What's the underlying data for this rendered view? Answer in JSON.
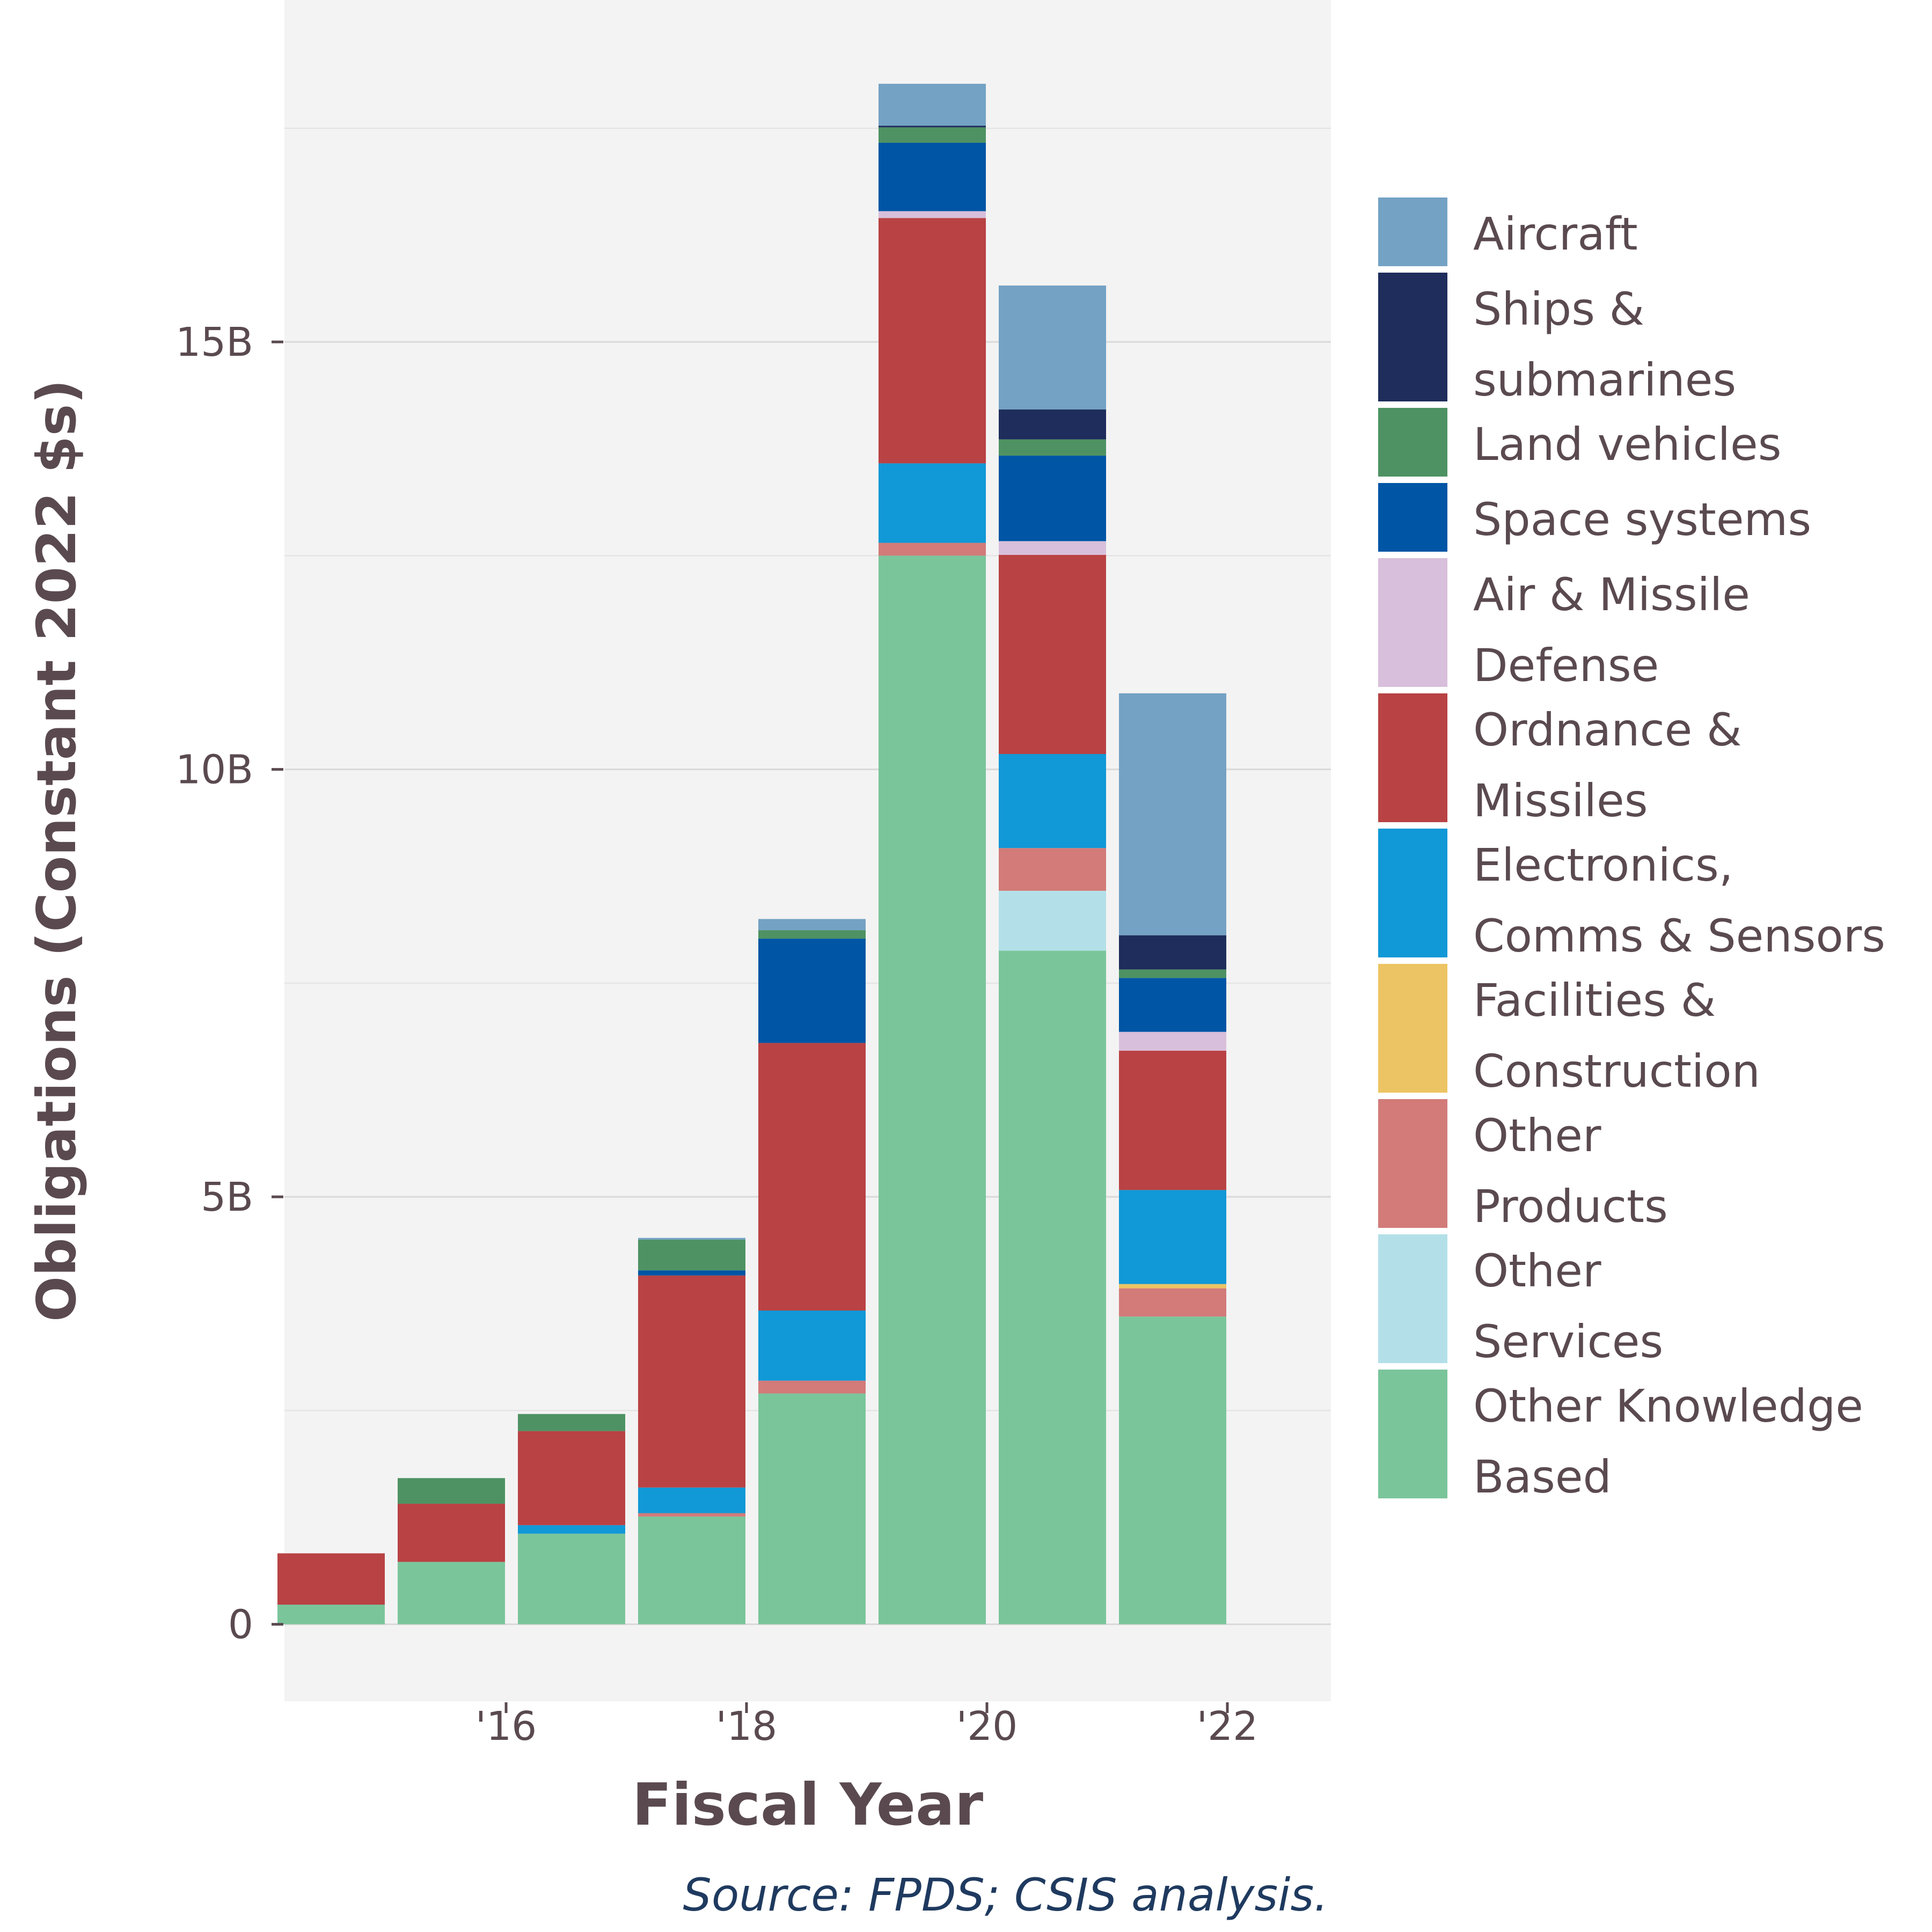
{
  "chart_data": {
    "type": "bar",
    "stacked": true,
    "xlabel": "Fiscal Year",
    "ylabel": "Obligations (Constant 2022 $s)",
    "caption": "Source: FPDS; CSIS analysis.",
    "categories": [
      "2015",
      "2016",
      "2017",
      "2018",
      "2019",
      "2020",
      "2021",
      "2022"
    ],
    "x_tick_labels": [
      {
        "at": "2016",
        "label": "'16"
      },
      {
        "at": "2018",
        "label": "'18"
      },
      {
        "at": "2020",
        "label": "'20"
      },
      {
        "at": "2022",
        "label": "'22"
      }
    ],
    "y_ticks": [
      {
        "value": 0,
        "label": "0"
      },
      {
        "value": 5,
        "label": "5B"
      },
      {
        "value": 10,
        "label": "10B"
      },
      {
        "value": 15,
        "label": "15B"
      }
    ],
    "ylim": [
      -0.9,
      19.0
    ],
    "y_units": "billions",
    "grid": true,
    "legend_position": "right",
    "series": [
      {
        "name": "Other Knowledge Based",
        "color": "#7bc59b",
        "values": [
          0.23,
          0.73,
          1.06,
          1.26,
          2.7,
          12.5,
          7.88,
          3.6
        ]
      },
      {
        "name": "Other Services",
        "color": "#b3e0e8",
        "values": [
          0,
          0,
          0,
          0,
          0,
          0,
          0.7,
          0
        ]
      },
      {
        "name": "Other Products",
        "color": "#d27b79",
        "values": [
          0,
          0,
          0,
          0.04,
          0.15,
          0.15,
          0.5,
          0.33
        ]
      },
      {
        "name": "Facilities & Construction",
        "color": "#edc463",
        "values": [
          0,
          0,
          0,
          0,
          0,
          0,
          0,
          0.05
        ]
      },
      {
        "name": "Electronics, Comms & Sensors",
        "color": "#1198d6",
        "values": [
          0,
          0,
          0.1,
          0.3,
          0.82,
          0.93,
          1.1,
          1.1
        ]
      },
      {
        "name": "Ordnance & Missiles",
        "color": "#b94244",
        "values": [
          0.6,
          0.68,
          1.1,
          2.48,
          3.13,
          2.87,
          2.33,
          1.63
        ]
      },
      {
        "name": "Air & Missile Defense",
        "color": "#d8bfdb",
        "values": [
          0,
          0,
          0,
          0,
          0,
          0.08,
          0.16,
          0.22
        ]
      },
      {
        "name": "Space systems",
        "color": "#0055a5",
        "values": [
          0,
          0,
          0,
          0.06,
          1.22,
          0.8,
          1.0,
          0.63
        ]
      },
      {
        "name": "Land vehicles",
        "color": "#4e9263",
        "values": [
          0,
          0.3,
          0.2,
          0.36,
          0.1,
          0.18,
          0.19,
          0.1
        ]
      },
      {
        "name": "Ships & submarines",
        "color": "#1e2d5b",
        "values": [
          0,
          0,
          0,
          0,
          0,
          0.02,
          0.35,
          0.4
        ]
      },
      {
        "name": "Aircraft",
        "color": "#74a2c4",
        "values": [
          0,
          0,
          0,
          0.02,
          0.13,
          0.49,
          1.45,
          2.83
        ]
      }
    ],
    "legend_entries": [
      {
        "series": "Aircraft",
        "lines": [
          "Aircraft"
        ]
      },
      {
        "series": "Ships & submarines",
        "lines": [
          "Ships &",
          "submarines"
        ]
      },
      {
        "series": "Land vehicles",
        "lines": [
          "Land vehicles"
        ]
      },
      {
        "series": "Space systems",
        "lines": [
          "Space systems"
        ]
      },
      {
        "series": "Air & Missile Defense",
        "lines": [
          "Air & Missile",
          "Defense"
        ]
      },
      {
        "series": "Ordnance & Missiles",
        "lines": [
          "Ordnance &",
          "Missiles"
        ]
      },
      {
        "series": "Electronics, Comms & Sensors",
        "lines": [
          "Electronics,",
          "Comms & Sensors"
        ]
      },
      {
        "series": "Facilities & Construction",
        "lines": [
          "Facilities &",
          "Construction"
        ]
      },
      {
        "series": "Other Products",
        "lines": [
          "Other",
          "Products"
        ]
      },
      {
        "series": "Other Services",
        "lines": [
          "Other",
          "Services"
        ]
      },
      {
        "series": "Other Knowledge Based",
        "lines": [
          "Other Knowledge",
          "Based"
        ]
      }
    ]
  }
}
